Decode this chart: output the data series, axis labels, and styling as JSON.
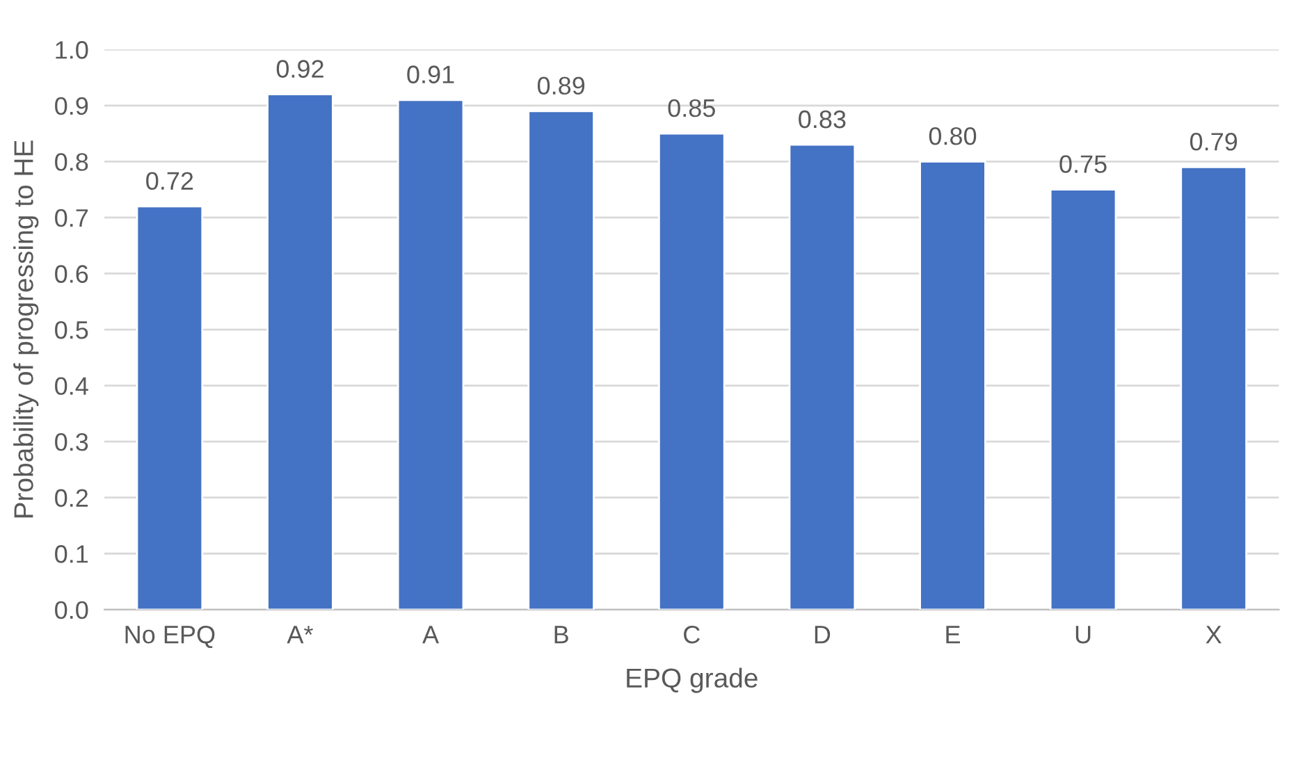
{
  "chart_data": {
    "type": "bar",
    "xlabel": "EPQ grade",
    "ylabel": "Probability of progressing to HE",
    "categories": [
      "No EPQ",
      "A*",
      "A",
      "B",
      "C",
      "D",
      "E",
      "U",
      "X"
    ],
    "values": [
      0.72,
      0.92,
      0.91,
      0.89,
      0.85,
      0.83,
      0.8,
      0.75,
      0.79
    ],
    "value_labels": [
      "0.72",
      "0.92",
      "0.91",
      "0.89",
      "0.85",
      "0.83",
      "0.80",
      "0.75",
      "0.79"
    ],
    "color": "#4472c4",
    "ylim": [
      0,
      1
    ],
    "yticks": [
      {
        "value": 0,
        "label": "0.0"
      },
      {
        "value": 0.1,
        "label": "0.1"
      },
      {
        "value": 0.2,
        "label": "0.2"
      },
      {
        "value": 0.3,
        "label": "0.3"
      },
      {
        "value": 0.4,
        "label": "0.4"
      },
      {
        "value": 0.5,
        "label": "0.5"
      },
      {
        "value": 0.6,
        "label": "0.6"
      },
      {
        "value": 0.7,
        "label": "0.7"
      },
      {
        "value": 0.8,
        "label": "0.8"
      },
      {
        "value": 0.9,
        "label": "0.9"
      },
      {
        "value": 1,
        "label": "1.0"
      }
    ],
    "grid": "y"
  }
}
